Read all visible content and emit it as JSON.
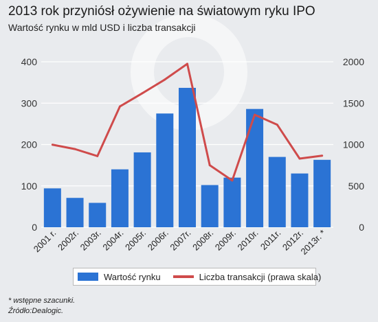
{
  "header": {
    "title": "2013 rok przyniósł ożywienie na światowym ryku IPO",
    "subtitle": "Wartość rynku w mld USD i liczba transakcji"
  },
  "colors": {
    "bar": "#2b73d4",
    "line": "#cf4b4b",
    "background": "#e9ebee"
  },
  "chart_data": {
    "type": "bar",
    "categories": [
      "2001 r.",
      "2002r.",
      "2003r.",
      "2004r.",
      "2005r.",
      "2006r.",
      "2007r.",
      "2008r.",
      "2009r.",
      "2010r.",
      "2011r.",
      "2012r.",
      "2013r. *"
    ],
    "series": [
      {
        "name": "Wartość rynku",
        "type": "bar",
        "axis": "left",
        "values": [
          94,
          71,
          59,
          140,
          181,
          275,
          337,
          102,
          120,
          286,
          170,
          130,
          163
        ]
      },
      {
        "name": "Liczba transakcji (prawa skala)",
        "type": "line",
        "axis": "right",
        "values": [
          998,
          945,
          860,
          1460,
          1620,
          1785,
          1975,
          750,
          565,
          1360,
          1240,
          830,
          865
        ]
      }
    ],
    "y_left": {
      "lim": [
        0,
        400
      ],
      "ticks": [
        "0",
        "100",
        "200",
        "300",
        "400"
      ]
    },
    "y_right": {
      "lim": [
        0,
        2000
      ],
      "ticks": [
        "0",
        "500",
        "1000",
        "1500",
        "2000"
      ]
    },
    "grid": true,
    "legend_position": "bottom"
  },
  "footnotes": {
    "estimate": "* wstępne szacunki.",
    "source": "Źródło:Dealogic."
  }
}
